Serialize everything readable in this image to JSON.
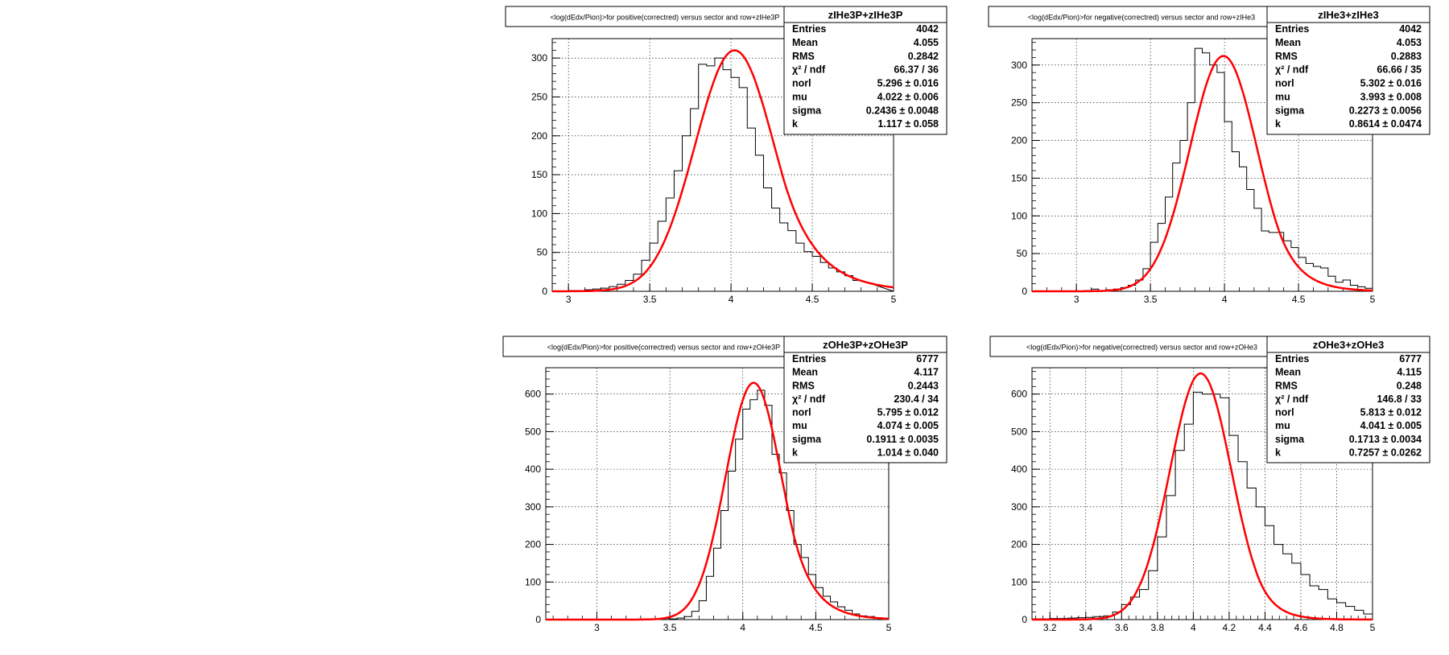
{
  "chart_data": [
    {
      "type": "histogram",
      "title": "<log(dEdx/Pion)>for positive(correctred) versus sector and row+zIHe3P",
      "stats": {
        "name": "zIHe3P+zIHe3P",
        "rows": [
          {
            "label": "Entries",
            "value": "4042"
          },
          {
            "label": "Mean",
            "value": "4.055"
          },
          {
            "label": "RMS",
            "value": "0.2842"
          },
          {
            "label": "χ² / ndf",
            "value": "66.37 / 36"
          },
          {
            "label": "norl",
            "value": "5.296 ± 0.016"
          },
          {
            "label": "mu",
            "value": "4.022 ± 0.006"
          },
          {
            "label": "sigma",
            "value": "0.2436 ± 0.0048"
          },
          {
            "label": "k",
            "value": "1.117 ± 0.058"
          }
        ]
      },
      "xlim": [
        2.9,
        5.0
      ],
      "ylim": [
        0,
        325
      ],
      "xticks": [
        3,
        3.5,
        4,
        4.5,
        5
      ],
      "xtick_labels": [
        "3",
        "3.5",
        "4",
        "4.5",
        "5"
      ],
      "yticks": [
        0,
        50,
        100,
        150,
        200,
        250,
        300
      ],
      "ytick_labels": [
        "0",
        "50",
        "100",
        "150",
        "200",
        "250",
        "300"
      ],
      "bin_width": 0.05,
      "bin_start": 2.9,
      "values": [
        0,
        0,
        1,
        1,
        2,
        3,
        4,
        6,
        9,
        14,
        22,
        40,
        62,
        90,
        120,
        155,
        200,
        235,
        292,
        290,
        300,
        285,
        275,
        262,
        210,
        175,
        133,
        107,
        88,
        78,
        62,
        51,
        45,
        37,
        30,
        25,
        20,
        14
      ],
      "fit": {
        "norl": 5.296,
        "mu": 4.022,
        "sigma": 0.2436,
        "k": 1.117,
        "peak": 310,
        "color": "#ff0000"
      }
    },
    {
      "type": "histogram",
      "title": "<log(dEdx/Pion)>for negative(correctred) versus sector and row+zIHe3",
      "stats": {
        "name": "zIHe3+zIHe3",
        "rows": [
          {
            "label": "Entries",
            "value": "4042"
          },
          {
            "label": "Mean",
            "value": "4.053"
          },
          {
            "label": "RMS",
            "value": "0.2883"
          },
          {
            "label": "χ² / ndf",
            "value": "66.66 / 35"
          },
          {
            "label": "norl",
            "value": "5.302 ± 0.016"
          },
          {
            "label": "mu",
            "value": "3.993 ± 0.008"
          },
          {
            "label": "sigma",
            "value": "0.2273 ± 0.0056"
          },
          {
            "label": "k",
            "value": "0.8614 ± 0.0474"
          }
        ]
      },
      "xlim": [
        2.7,
        5.0
      ],
      "ylim": [
        0,
        335
      ],
      "xticks": [
        3,
        3.5,
        4,
        4.5,
        5
      ],
      "xtick_labels": [
        "3",
        "3.5",
        "4",
        "4.5",
        "5"
      ],
      "yticks": [
        0,
        50,
        100,
        150,
        200,
        250,
        300
      ],
      "ytick_labels": [
        "0",
        "50",
        "100",
        "150",
        "200",
        "250",
        "300"
      ],
      "bin_width": 0.05,
      "bin_start": 2.7,
      "values": [
        0,
        0,
        0,
        0,
        0,
        0,
        0,
        1,
        3,
        1,
        2,
        3,
        5,
        8,
        15,
        30,
        65,
        90,
        125,
        170,
        200,
        250,
        322,
        316,
        300,
        290,
        225,
        185,
        165,
        135,
        110,
        80,
        78,
        78,
        67,
        58,
        45,
        37,
        33,
        31,
        20,
        12,
        15,
        8,
        6,
        4
      ],
      "fit": {
        "norl": 5.302,
        "mu": 3.993,
        "sigma": 0.2273,
        "k": 0.8614,
        "peak": 312,
        "color": "#ff0000"
      }
    },
    {
      "type": "histogram",
      "title": "<log(dEdx/Pion)>for positive(correctred) versus sector and row+zOHe3P",
      "stats": {
        "name": "zOHe3P+zOHe3P",
        "rows": [
          {
            "label": "Entries",
            "value": "6777"
          },
          {
            "label": "Mean",
            "value": "4.117"
          },
          {
            "label": "RMS",
            "value": "0.2443"
          },
          {
            "label": "χ² / ndf",
            "value": "230.4 / 34"
          },
          {
            "label": "norl",
            "value": "5.795 ± 0.012"
          },
          {
            "label": "mu",
            "value": "4.074 ± 0.005"
          },
          {
            "label": "sigma",
            "value": "0.1911 ± 0.0035"
          },
          {
            "label": "k",
            "value": "1.014 ± 0.040"
          }
        ]
      },
      "xlim": [
        2.65,
        5.0
      ],
      "ylim": [
        0,
        670
      ],
      "xticks": [
        3,
        3.5,
        4,
        4.5,
        5
      ],
      "xtick_labels": [
        "3",
        "3.5",
        "4",
        "4.5",
        "5"
      ],
      "yticks": [
        0,
        100,
        200,
        300,
        400,
        500,
        600
      ],
      "ytick_labels": [
        "0",
        "100",
        "200",
        "300",
        "400",
        "500",
        "600"
      ],
      "bin_width": 0.05,
      "bin_start": 2.65,
      "values": [
        0,
        0,
        0,
        0,
        0,
        0,
        0,
        0,
        0,
        0,
        0,
        0,
        0,
        1,
        1,
        2,
        3,
        2,
        4,
        8,
        22,
        50,
        115,
        190,
        290,
        395,
        480,
        560,
        585,
        610,
        570,
        440,
        390,
        290,
        200,
        165,
        120,
        85,
        62,
        47,
        34,
        25,
        15,
        10,
        8,
        5,
        2
      ],
      "fit": {
        "norl": 5.795,
        "mu": 4.074,
        "sigma": 0.1911,
        "k": 1.014,
        "peak": 630,
        "color": "#ff0000"
      }
    },
    {
      "type": "histogram",
      "title": "<log(dEdx/Pion)>for negative(correctred) versus sector and row+zOHe3",
      "stats": {
        "name": "zOHe3+zOHe3",
        "rows": [
          {
            "label": "Entries",
            "value": "6777"
          },
          {
            "label": "Mean",
            "value": "4.115"
          },
          {
            "label": "RMS",
            "value": "0.248"
          },
          {
            "label": "χ² / ndf",
            "value": "146.8 / 33"
          },
          {
            "label": "norl",
            "value": "5.813 ± 0.012"
          },
          {
            "label": "mu",
            "value": "4.041 ± 0.005"
          },
          {
            "label": "sigma",
            "value": "0.1713 ± 0.0034"
          },
          {
            "label": "k",
            "value": "0.7257 ± 0.0262"
          }
        ]
      },
      "xlim": [
        3.1,
        5.0
      ],
      "ylim": [
        0,
        670
      ],
      "xticks": [
        3.2,
        3.4,
        3.6,
        3.8,
        4,
        4.2,
        4.4,
        4.6,
        4.8,
        5
      ],
      "xtick_labels": [
        "3.2",
        "3.4",
        "3.6",
        "3.8",
        "4",
        "4.2",
        "4.4",
        "4.6",
        "4.8",
        "5"
      ],
      "yticks": [
        0,
        100,
        200,
        300,
        400,
        500,
        600
      ],
      "ytick_labels": [
        "0",
        "100",
        "200",
        "300",
        "400",
        "500",
        "600"
      ],
      "bin_width": 0.05,
      "bin_start": 3.1,
      "values": [
        2,
        2,
        3,
        3,
        4,
        5,
        6,
        8,
        10,
        20,
        40,
        60,
        80,
        130,
        220,
        330,
        450,
        520,
        605,
        600,
        600,
        590,
        490,
        420,
        350,
        300,
        250,
        200,
        175,
        150,
        120,
        90,
        80,
        55,
        45,
        35,
        25,
        15
      ],
      "fit": {
        "norl": 5.813,
        "mu": 4.041,
        "sigma": 0.1713,
        "k": 0.7257,
        "peak": 655,
        "color": "#ff0000"
      }
    }
  ]
}
